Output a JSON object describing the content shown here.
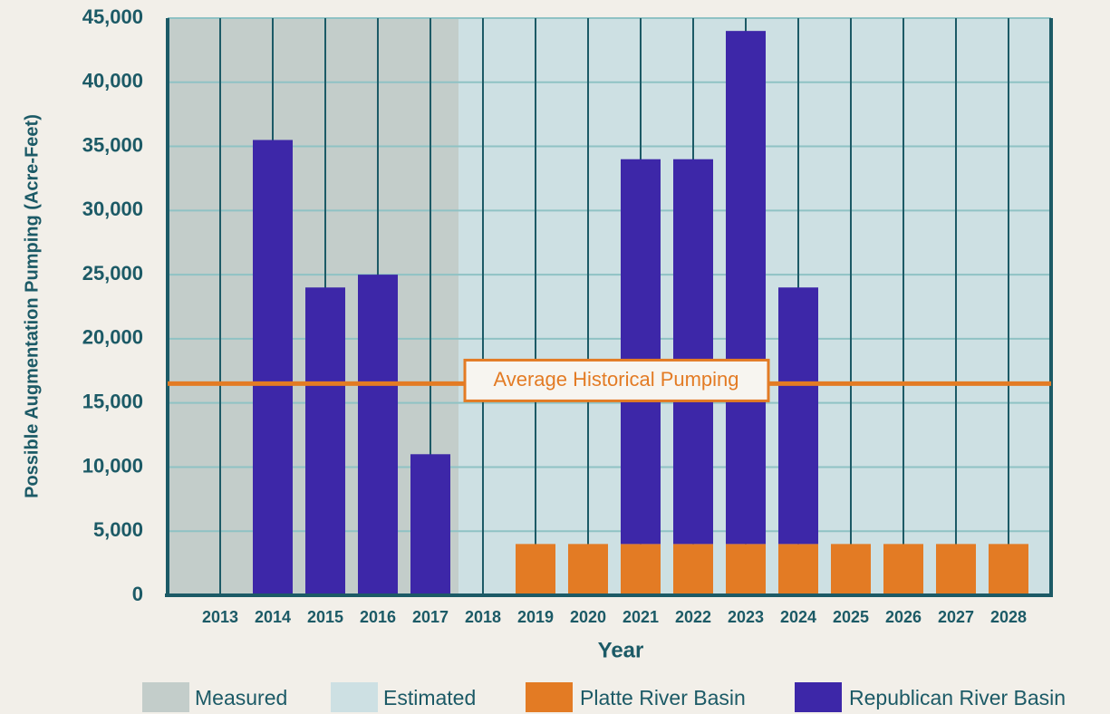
{
  "chart_data": {
    "type": "stacked_bar",
    "xlabel": "Year",
    "ylabel": "Possible Augmentation Pumping (Acre-Feet)",
    "categories": [
      "2013",
      "2014",
      "2015",
      "2016",
      "2017",
      "2018",
      "2019",
      "2020",
      "2021",
      "2022",
      "2023",
      "2024",
      "2025",
      "2026",
      "2027",
      "2028"
    ],
    "series": [
      {
        "name": "Platte River Basin",
        "color": "#e37b24",
        "values": [
          null,
          null,
          null,
          null,
          null,
          null,
          4000,
          4000,
          4000,
          4000,
          4000,
          4000,
          4000,
          4000,
          4000,
          4000
        ]
      },
      {
        "name": "Republican River Basin",
        "color": "#3d27a8",
        "values": [
          null,
          35500,
          24000,
          25000,
          11000,
          null,
          null,
          null,
          30000,
          30000,
          40000,
          20000,
          null,
          null,
          null,
          null
        ]
      }
    ],
    "regions": [
      {
        "name": "Measured",
        "color": "#c3cdca"
      },
      {
        "name": "Estimated",
        "color": "#cde0e3"
      }
    ],
    "reference_line": {
      "label": "Average Historical Pumping",
      "value": 16500,
      "color": "#e37b24"
    },
    "ylim": [
      0,
      45000
    ],
    "yticks": [
      0,
      {
        "value": 5000,
        "label": "5,000"
      },
      {
        "value": 10000,
        "label": "10,000"
      },
      {
        "value": 15000,
        "label": "15,000"
      },
      {
        "value": 20000,
        "label": "20,000"
      },
      {
        "value": 25000,
        "label": "25,000"
      },
      {
        "value": 30000,
        "label": "30,000"
      },
      {
        "value": 35000,
        "label": "35,000"
      },
      {
        "value": 40000,
        "label": "40,000"
      },
      {
        "value": 45000,
        "label": "45,000"
      }
    ],
    "grid": true
  }
}
